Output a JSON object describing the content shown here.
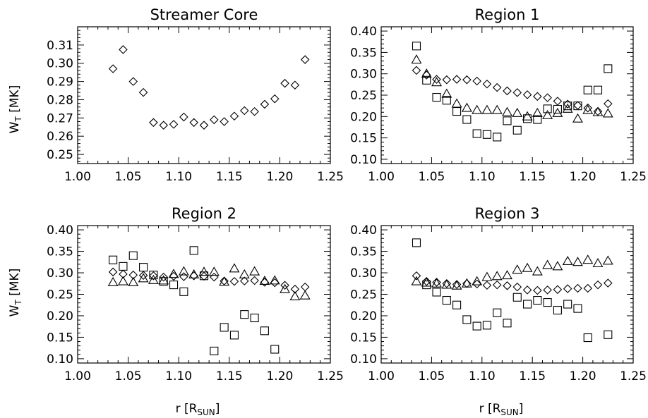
{
  "figure": {
    "xlabel_main": "r [R",
    "xlabel_sub": "SUN",
    "xlabel_close": "]",
    "ylabel_main": "W",
    "ylabel_sub": "T",
    "ylabel_rest": " [MK]"
  },
  "chart_data": [
    {
      "type": "scatter",
      "title": "Streamer Core",
      "xlim": [
        1.0,
        1.25
      ],
      "ylim": [
        0.245,
        0.32
      ],
      "xticks": [
        "1.00",
        "1.05",
        "1.10",
        "1.15",
        "1.20",
        "1.25"
      ],
      "yticks": [
        "0.25",
        "0.26",
        "0.27",
        "0.28",
        "0.29",
        "0.30",
        "0.31"
      ],
      "xlabel": "",
      "ylabel": "W_T [MK]",
      "series": [
        {
          "marker": "diamond",
          "x": [
            1.035,
            1.045,
            1.055,
            1.065,
            1.075,
            1.085,
            1.095,
            1.105,
            1.115,
            1.125,
            1.135,
            1.145,
            1.155,
            1.165,
            1.175,
            1.185,
            1.195,
            1.205,
            1.215,
            1.225
          ],
          "y": [
            0.297,
            0.3075,
            0.29,
            0.284,
            0.2675,
            0.266,
            0.2665,
            0.2705,
            0.2675,
            0.266,
            0.269,
            0.268,
            0.271,
            0.274,
            0.2735,
            0.2775,
            0.2805,
            0.289,
            0.288,
            0.302
          ]
        }
      ]
    },
    {
      "type": "scatter",
      "title": "Region 1",
      "xlim": [
        1.0,
        1.25
      ],
      "ylim": [
        0.09,
        0.41
      ],
      "xticks": [
        "1.00",
        "1.05",
        "1.10",
        "1.15",
        "1.20",
        "1.25"
      ],
      "yticks": [
        "0.10",
        "0.15",
        "0.20",
        "0.25",
        "0.30",
        "0.35",
        "0.40"
      ],
      "xlabel": "",
      "ylabel": "",
      "series": [
        {
          "marker": "diamond",
          "x": [
            1.035,
            1.045,
            1.055,
            1.065,
            1.075,
            1.085,
            1.095,
            1.105,
            1.115,
            1.125,
            1.135,
            1.145,
            1.155,
            1.165,
            1.175,
            1.185,
            1.195,
            1.205,
            1.215,
            1.225
          ],
          "y": [
            0.308,
            0.297,
            0.287,
            0.286,
            0.287,
            0.286,
            0.283,
            0.276,
            0.268,
            0.26,
            0.256,
            0.251,
            0.247,
            0.244,
            0.236,
            0.229,
            0.226,
            0.22,
            0.212,
            0.23
          ]
        },
        {
          "marker": "square",
          "x": [
            1.035,
            1.045,
            1.055,
            1.065,
            1.075,
            1.085,
            1.095,
            1.105,
            1.115,
            1.125,
            1.135,
            1.145,
            1.155,
            1.165,
            1.175,
            1.185,
            1.195,
            1.205,
            1.215,
            1.225
          ],
          "y": [
            0.365,
            0.285,
            0.245,
            0.238,
            0.212,
            0.193,
            0.16,
            0.158,
            0.152,
            0.19,
            0.168,
            0.195,
            0.193,
            0.218,
            0.217,
            0.225,
            0.225,
            0.262,
            0.262,
            0.312
          ]
        },
        {
          "marker": "triangle",
          "x": [
            1.035,
            1.045,
            1.055,
            1.065,
            1.075,
            1.085,
            1.095,
            1.105,
            1.115,
            1.125,
            1.135,
            1.145,
            1.155,
            1.165,
            1.175,
            1.185,
            1.195,
            1.205,
            1.215,
            1.225
          ],
          "y": [
            0.333,
            0.3,
            0.28,
            0.253,
            0.23,
            0.22,
            0.215,
            0.215,
            0.215,
            0.21,
            0.208,
            0.2,
            0.208,
            0.203,
            0.208,
            0.218,
            0.195,
            0.215,
            0.21,
            0.207
          ]
        }
      ]
    },
    {
      "type": "scatter",
      "title": "Region 2",
      "xlim": [
        1.0,
        1.25
      ],
      "ylim": [
        0.09,
        0.41
      ],
      "xticks": [
        "1.00",
        "1.05",
        "1.10",
        "1.15",
        "1.20",
        "1.25"
      ],
      "yticks": [
        "0.10",
        "0.15",
        "0.20",
        "0.25",
        "0.30",
        "0.35",
        "0.40"
      ],
      "xlabel": "r [R_SUN]",
      "ylabel": "W_T [MK]",
      "series": [
        {
          "marker": "diamond",
          "x": [
            1.035,
            1.045,
            1.055,
            1.065,
            1.075,
            1.085,
            1.095,
            1.105,
            1.115,
            1.125,
            1.135,
            1.145,
            1.155,
            1.165,
            1.175,
            1.185,
            1.195,
            1.205,
            1.215,
            1.225
          ],
          "y": [
            0.302,
            0.297,
            0.295,
            0.294,
            0.293,
            0.29,
            0.292,
            0.291,
            0.293,
            0.292,
            0.29,
            0.281,
            0.28,
            0.281,
            0.282,
            0.278,
            0.277,
            0.271,
            0.262,
            0.267
          ]
        },
        {
          "marker": "square",
          "x": [
            1.035,
            1.045,
            1.055,
            1.065,
            1.075,
            1.085,
            1.095,
            1.105,
            1.115,
            1.125,
            1.135,
            1.145,
            1.155,
            1.165,
            1.175,
            1.185,
            1.195
          ],
          "y": [
            0.33,
            0.315,
            0.34,
            0.313,
            0.295,
            0.28,
            0.272,
            0.256,
            0.352,
            0.293,
            0.118,
            0.173,
            0.155,
            0.203,
            0.195,
            0.165,
            0.122
          ]
        },
        {
          "marker": "triangle",
          "x": [
            1.035,
            1.045,
            1.055,
            1.065,
            1.075,
            1.085,
            1.095,
            1.105,
            1.115,
            1.125,
            1.135,
            1.145,
            1.155,
            1.165,
            1.175,
            1.185,
            1.195,
            1.205,
            1.215,
            1.225
          ],
          "y": [
            0.278,
            0.28,
            0.278,
            0.287,
            0.283,
            0.282,
            0.297,
            0.303,
            0.296,
            0.302,
            0.302,
            0.279,
            0.31,
            0.296,
            0.303,
            0.281,
            0.282,
            0.262,
            0.245,
            0.247
          ]
        }
      ]
    },
    {
      "type": "scatter",
      "title": "Region 3",
      "xlim": [
        1.0,
        1.25
      ],
      "ylim": [
        0.09,
        0.41
      ],
      "xticks": [
        "1.00",
        "1.05",
        "1.10",
        "1.15",
        "1.20",
        "1.25"
      ],
      "yticks": [
        "0.10",
        "0.15",
        "0.20",
        "0.25",
        "0.30",
        "0.35",
        "0.40"
      ],
      "xlabel": "r [R_SUN]",
      "ylabel": "",
      "series": [
        {
          "marker": "diamond",
          "x": [
            1.035,
            1.045,
            1.055,
            1.065,
            1.075,
            1.085,
            1.095,
            1.105,
            1.115,
            1.125,
            1.135,
            1.145,
            1.155,
            1.165,
            1.175,
            1.185,
            1.195,
            1.205,
            1.215,
            1.225
          ],
          "y": [
            0.293,
            0.28,
            0.278,
            0.275,
            0.273,
            0.275,
            0.274,
            0.271,
            0.272,
            0.27,
            0.267,
            0.26,
            0.259,
            0.26,
            0.261,
            0.263,
            0.264,
            0.264,
            0.272,
            0.276
          ]
        },
        {
          "marker": "square",
          "x": [
            1.035,
            1.045,
            1.055,
            1.065,
            1.075,
            1.085,
            1.095,
            1.105,
            1.115,
            1.125,
            1.135,
            1.145,
            1.155,
            1.165,
            1.175,
            1.185,
            1.195,
            1.205,
            1.225
          ],
          "y": [
            0.37,
            0.272,
            0.255,
            0.236,
            0.225,
            0.191,
            0.176,
            0.178,
            0.207,
            0.183,
            0.243,
            0.227,
            0.236,
            0.231,
            0.213,
            0.227,
            0.217,
            0.149,
            0.156
          ]
        },
        {
          "marker": "triangle",
          "x": [
            1.035,
            1.045,
            1.055,
            1.065,
            1.075,
            1.085,
            1.095,
            1.105,
            1.115,
            1.125,
            1.135,
            1.145,
            1.155,
            1.165,
            1.175,
            1.185,
            1.195,
            1.205,
            1.215,
            1.225
          ],
          "y": [
            0.28,
            0.277,
            0.275,
            0.272,
            0.27,
            0.275,
            0.28,
            0.29,
            0.292,
            0.294,
            0.307,
            0.311,
            0.303,
            0.318,
            0.315,
            0.327,
            0.325,
            0.33,
            0.322,
            0.328
          ]
        }
      ]
    }
  ]
}
